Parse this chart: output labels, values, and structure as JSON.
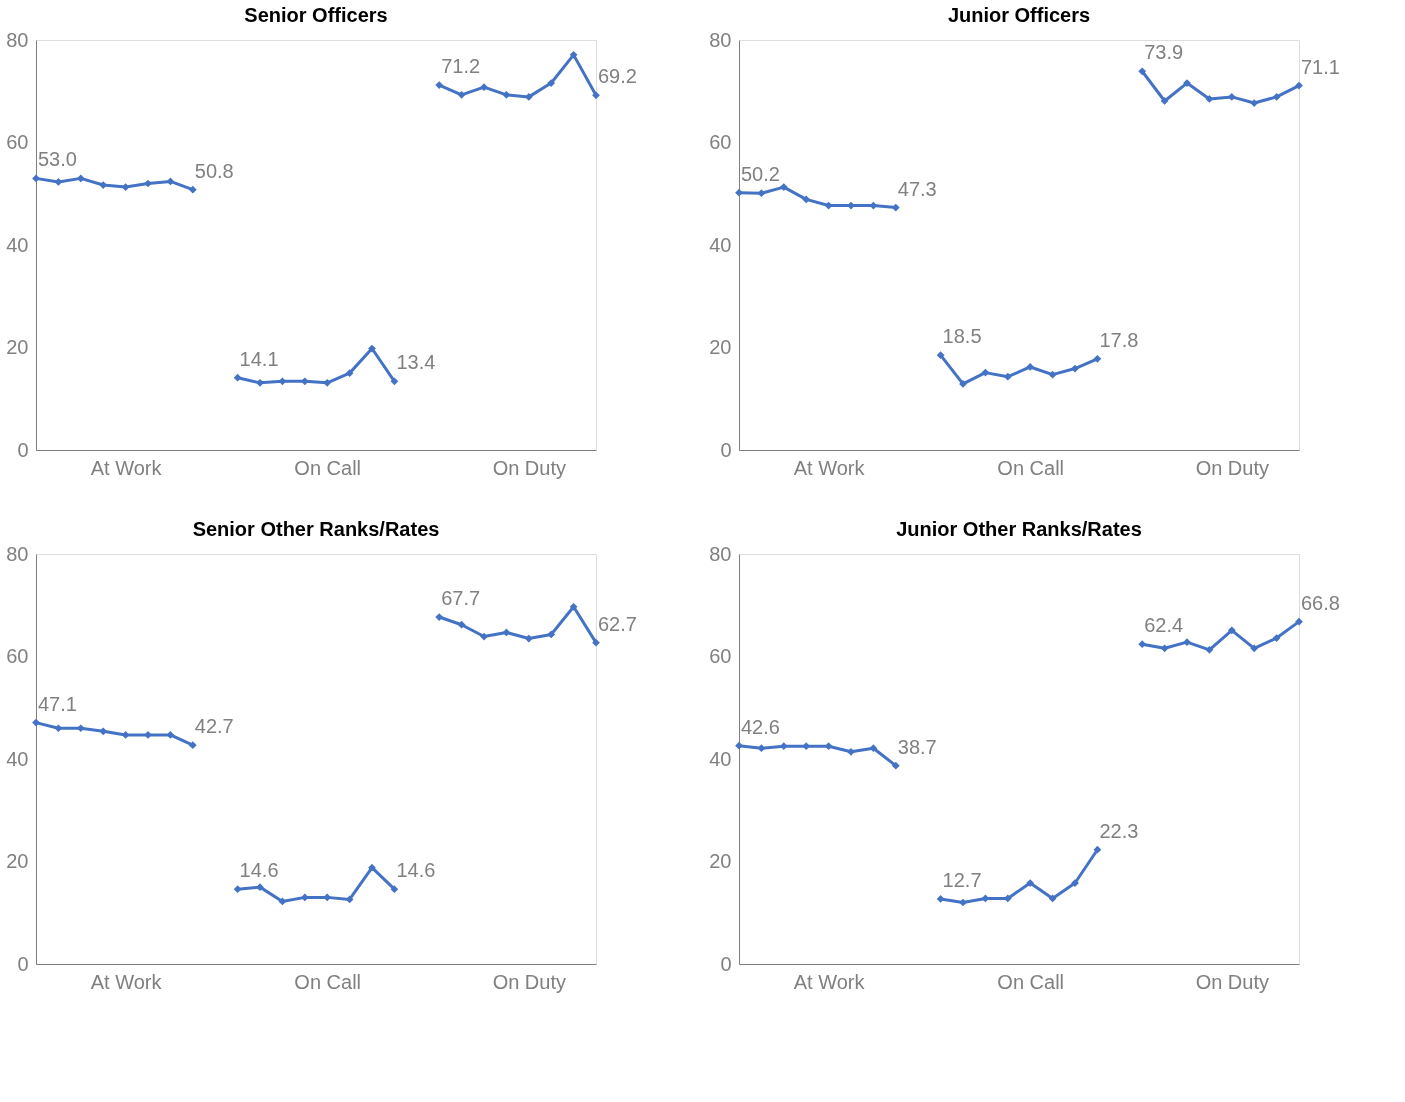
{
  "chart_data": [
    {
      "type": "line",
      "title": "Senior Officers",
      "categories": [
        null,
        null,
        null,
        null,
        "At Work",
        null,
        null,
        null,
        null,
        null,
        null,
        null,
        null,
        "On Call",
        null,
        null,
        null,
        null,
        null,
        null,
        null,
        null,
        "On Duty",
        null,
        null,
        null
      ],
      "ylim": [
        0,
        80
      ],
      "yticks": [
        0,
        20,
        40,
        60,
        80
      ],
      "grid": false,
      "legend": false,
      "marker": "diamond",
      "line_style": "solid",
      "series": [
        {
          "color": "#4472c4",
          "values": [
            53.0,
            52.3,
            53.0,
            51.7,
            51.3,
            52.0,
            52.4,
            50.8,
            null,
            14.1,
            13.1,
            13.4,
            13.4,
            13.1,
            15.0,
            19.8,
            13.4,
            null,
            71.2,
            69.3,
            70.8,
            69.3,
            68.9,
            71.6,
            77.1,
            69.2
          ],
          "value_labels": [
            "53.0",
            null,
            null,
            null,
            null,
            null,
            null,
            "50.8",
            null,
            "14.1",
            null,
            null,
            null,
            null,
            null,
            null,
            "13.4",
            null,
            "71.2",
            null,
            null,
            null,
            null,
            null,
            null,
            "69.2"
          ]
        }
      ]
    },
    {
      "type": "line",
      "title": "Junior Officers",
      "categories": [
        null,
        null,
        null,
        null,
        "At Work",
        null,
        null,
        null,
        null,
        null,
        null,
        null,
        null,
        "On Call",
        null,
        null,
        null,
        null,
        null,
        null,
        null,
        null,
        "On Duty",
        null,
        null,
        null
      ],
      "ylim": [
        0,
        80
      ],
      "yticks": [
        0,
        20,
        40,
        60,
        80
      ],
      "grid": false,
      "legend": false,
      "marker": "diamond",
      "line_style": "solid",
      "series": [
        {
          "color": "#4472c4",
          "values": [
            50.2,
            50.1,
            51.3,
            48.9,
            47.7,
            47.7,
            47.7,
            47.3,
            null,
            18.5,
            12.9,
            15.1,
            14.3,
            16.2,
            14.7,
            15.9,
            17.8,
            null,
            73.9,
            68.1,
            71.6,
            68.5,
            68.9,
            67.7,
            68.9,
            71.1
          ],
          "value_labels": [
            "50.2",
            null,
            null,
            null,
            null,
            null,
            null,
            "47.3",
            null,
            "18.5",
            null,
            null,
            null,
            null,
            null,
            null,
            "17.8",
            null,
            "73.9",
            null,
            null,
            null,
            null,
            null,
            null,
            "71.1"
          ]
        }
      ]
    },
    {
      "type": "line",
      "title": "Senior Other Ranks/Rates",
      "categories": [
        null,
        null,
        null,
        null,
        "At Work",
        null,
        null,
        null,
        null,
        null,
        null,
        null,
        null,
        "On Call",
        null,
        null,
        null,
        null,
        null,
        null,
        null,
        null,
        "On Duty",
        null,
        null,
        null
      ],
      "ylim": [
        0,
        80
      ],
      "yticks": [
        0,
        20,
        40,
        60,
        80
      ],
      "grid": false,
      "legend": false,
      "marker": "diamond",
      "line_style": "solid",
      "series": [
        {
          "color": "#4472c4",
          "values": [
            47.1,
            46.0,
            46.0,
            45.4,
            44.7,
            44.7,
            44.7,
            42.7,
            null,
            14.6,
            15.0,
            12.2,
            13.0,
            13.0,
            12.6,
            18.8,
            14.6,
            null,
            67.7,
            66.2,
            63.9,
            64.7,
            63.5,
            64.3,
            69.7,
            62.7
          ],
          "value_labels": [
            "47.1",
            null,
            null,
            null,
            null,
            null,
            null,
            "42.7",
            null,
            "14.6",
            null,
            null,
            null,
            null,
            null,
            null,
            "14.6",
            null,
            "67.7",
            null,
            null,
            null,
            null,
            null,
            null,
            "62.7"
          ]
        }
      ]
    },
    {
      "type": "line",
      "title": "Junior Other Ranks/Rates",
      "categories": [
        null,
        null,
        null,
        null,
        "At Work",
        null,
        null,
        null,
        null,
        null,
        null,
        null,
        null,
        "On Call",
        null,
        null,
        null,
        null,
        null,
        null,
        null,
        null,
        "On Duty",
        null,
        null,
        null
      ],
      "ylim": [
        0,
        80
      ],
      "yticks": [
        0,
        20,
        40,
        60,
        80
      ],
      "grid": false,
      "legend": false,
      "marker": "diamond",
      "line_style": "solid",
      "series": [
        {
          "color": "#4472c4",
          "values": [
            42.6,
            42.1,
            42.5,
            42.5,
            42.5,
            41.4,
            42.1,
            38.7,
            null,
            12.7,
            12.0,
            12.8,
            12.8,
            15.8,
            12.8,
            15.8,
            22.3,
            null,
            62.4,
            61.6,
            62.8,
            61.3,
            65.1,
            61.6,
            63.6,
            66.8
          ],
          "value_labels": [
            "42.6",
            null,
            null,
            null,
            null,
            null,
            null,
            "38.7",
            null,
            "12.7",
            null,
            null,
            null,
            null,
            null,
            null,
            "22.3",
            null,
            "62.4",
            null,
            null,
            null,
            null,
            null,
            null,
            "66.8"
          ]
        }
      ]
    }
  ]
}
